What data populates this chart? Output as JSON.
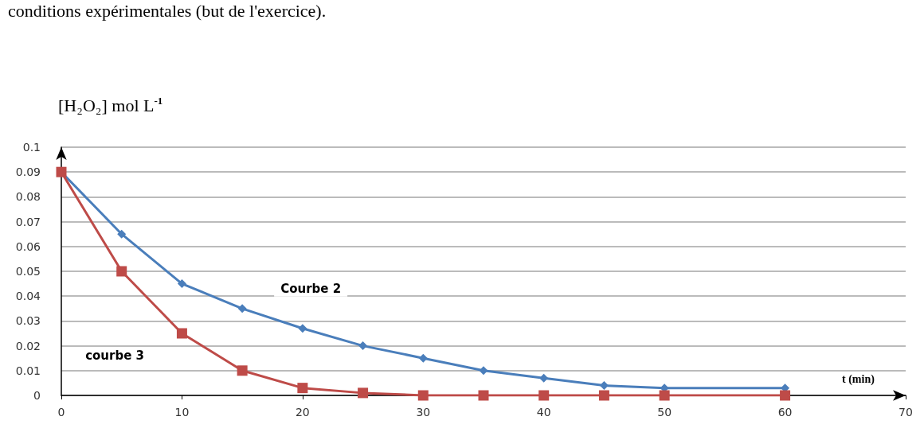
{
  "chart_data": {
    "type": "line",
    "xlabel": "t (min)",
    "ylabel": "[H₂O₂] mol L$^{-1}$",
    "annotations": [
      "conditions expérimentales (but de l'exercice)."
    ],
    "x": [
      0,
      5,
      10,
      15,
      20,
      25,
      30,
      35,
      40,
      45,
      50,
      60
    ],
    "series": [
      {
        "name": "Courbe 2",
        "color": "#4a7ebb",
        "marker": "diamond",
        "values": [
          0.09,
          0.065,
          0.045,
          0.035,
          0.027,
          0.02,
          0.015,
          0.01,
          0.007,
          0.004,
          0.003,
          0.003
        ]
      },
      {
        "name": "courbe 3",
        "color": "#be4b48",
        "marker": "square",
        "values": [
          0.09,
          0.05,
          0.025,
          0.01,
          0.003,
          0.001,
          0,
          0,
          0,
          0,
          0,
          0
        ]
      }
    ],
    "xlim": [
      0,
      70
    ],
    "xticks": [
      0,
      10,
      20,
      30,
      40,
      50,
      60,
      70
    ],
    "ylim": [
      0,
      0.1
    ],
    "yticks": [
      0,
      0.01,
      0.02,
      0.03,
      0.04,
      0.05,
      0.06,
      0.07,
      0.08,
      0.09,
      0.1
    ],
    "grid": "y",
    "line_style": "solid",
    "legend": false
  }
}
